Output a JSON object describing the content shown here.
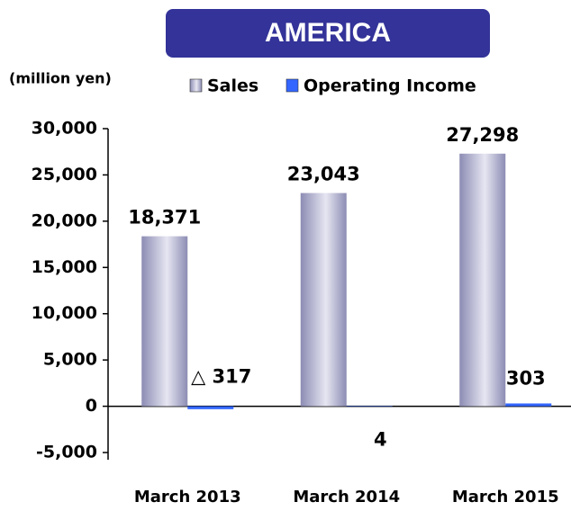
{
  "chart_data": {
    "type": "bar",
    "title": "AMERICA",
    "unit_label": "(million yen)",
    "categories": [
      "March 2013",
      "March 2014",
      "March 2015"
    ],
    "series": [
      {
        "name": "Sales",
        "color": "#8c8cb4",
        "values": [
          18371,
          23043,
          27298
        ],
        "value_labels": [
          "18,371",
          "23,043",
          "27,298"
        ]
      },
      {
        "name": "Operating Income",
        "color": "#3366ff",
        "values": [
          -317,
          4,
          303
        ],
        "value_labels": [
          "△ 317",
          "4",
          "303"
        ]
      }
    ],
    "ylim": [
      -5000,
      30000
    ],
    "yticks": [
      {
        "value": -5000,
        "label": "-5,000"
      },
      0,
      {
        "value": 5000,
        "label": "5,000"
      },
      {
        "value": 10000,
        "label": "10,000"
      },
      {
        "value": 15000,
        "label": "15,000"
      },
      {
        "value": 20000,
        "label": "20,000"
      },
      {
        "value": 25000,
        "label": "25,000"
      },
      {
        "value": 30000,
        "label": "30,000"
      }
    ],
    "legend": "top"
  }
}
